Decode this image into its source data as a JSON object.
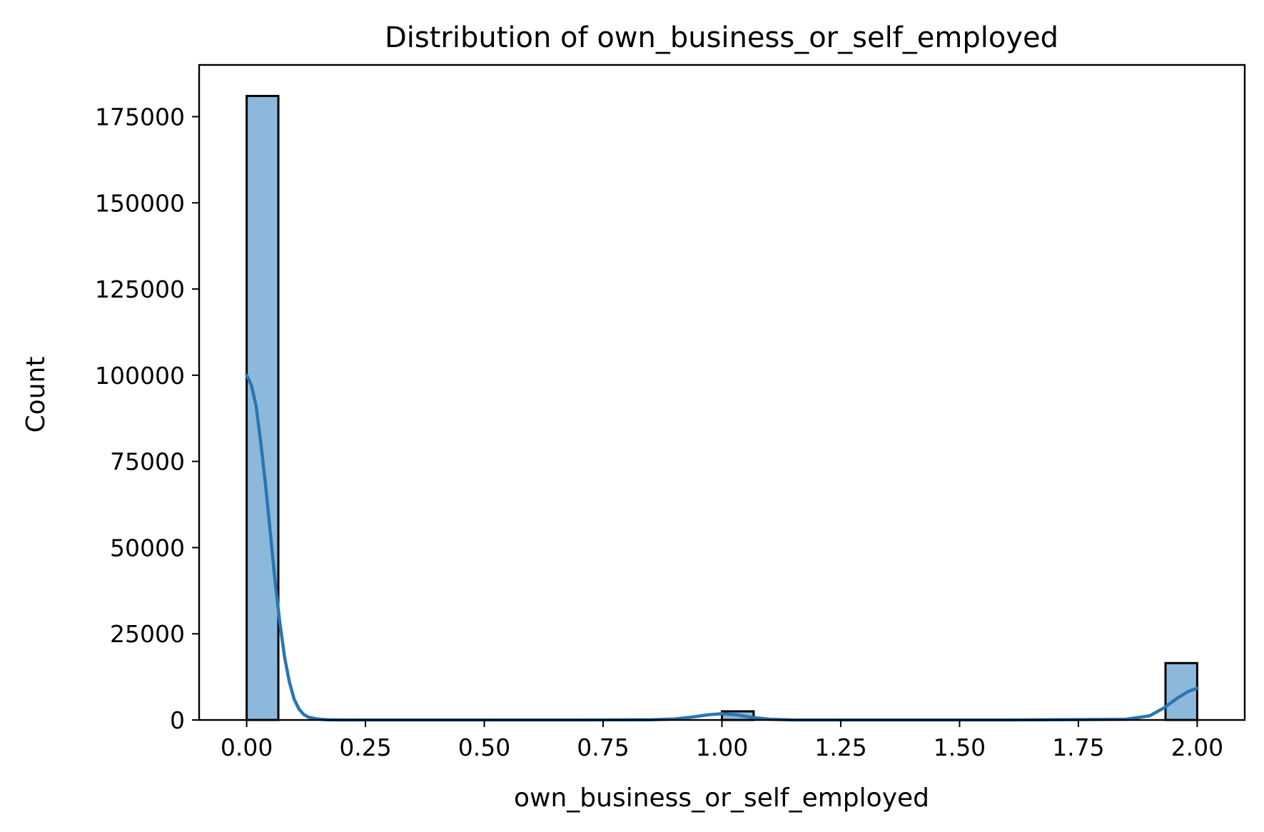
{
  "chart_data": {
    "type": "bar",
    "title": "Distribution of own_business_or_self_employed",
    "xlabel": "own_business_or_self_employed",
    "ylabel": "Count",
    "xlim": [
      -0.1,
      2.1
    ],
    "ylim": [
      0,
      190000
    ],
    "xticks": [
      "0.00",
      "0.25",
      "0.50",
      "0.75",
      "1.00",
      "1.25",
      "1.50",
      "1.75",
      "2.00"
    ],
    "yticks": [
      "0",
      "25000",
      "50000",
      "75000",
      "100000",
      "125000",
      "150000",
      "175000"
    ],
    "grid": false,
    "legend": "none",
    "series": [
      {
        "kind": "histogram",
        "bins": [
          {
            "x0": 0.0,
            "x1": 0.0667,
            "count": 181000
          },
          {
            "x0": 1.0,
            "x1": 1.0667,
            "count": 2500
          },
          {
            "x0": 1.9333,
            "x1": 2.0,
            "count": 16500
          }
        ]
      },
      {
        "kind": "kde-line",
        "x": [
          0.0,
          0.01,
          0.02,
          0.03,
          0.04,
          0.05,
          0.06,
          0.07,
          0.08,
          0.09,
          0.1,
          0.11,
          0.12,
          0.13,
          0.15,
          0.17,
          0.2,
          0.3,
          0.5,
          0.7,
          0.85,
          0.9,
          0.94,
          0.97,
          1.0,
          1.03,
          1.06,
          1.1,
          1.15,
          1.3,
          1.6,
          1.85,
          1.9,
          1.93,
          1.96,
          1.98,
          2.0
        ],
        "y": [
          100000,
          97000,
          91000,
          80000,
          68000,
          54000,
          40000,
          28000,
          18000,
          11000,
          6000,
          3200,
          1600,
          800,
          250,
          60,
          0,
          0,
          0,
          0,
          60,
          300,
          900,
          1500,
          1800,
          1500,
          800,
          200,
          0,
          0,
          0,
          200,
          1200,
          3500,
          6500,
          8200,
          9200
        ]
      }
    ],
    "colors": {
      "bar_fill": "#8cb9db",
      "bar_edge": "#000000",
      "kde_line": "#2a75b3"
    }
  }
}
